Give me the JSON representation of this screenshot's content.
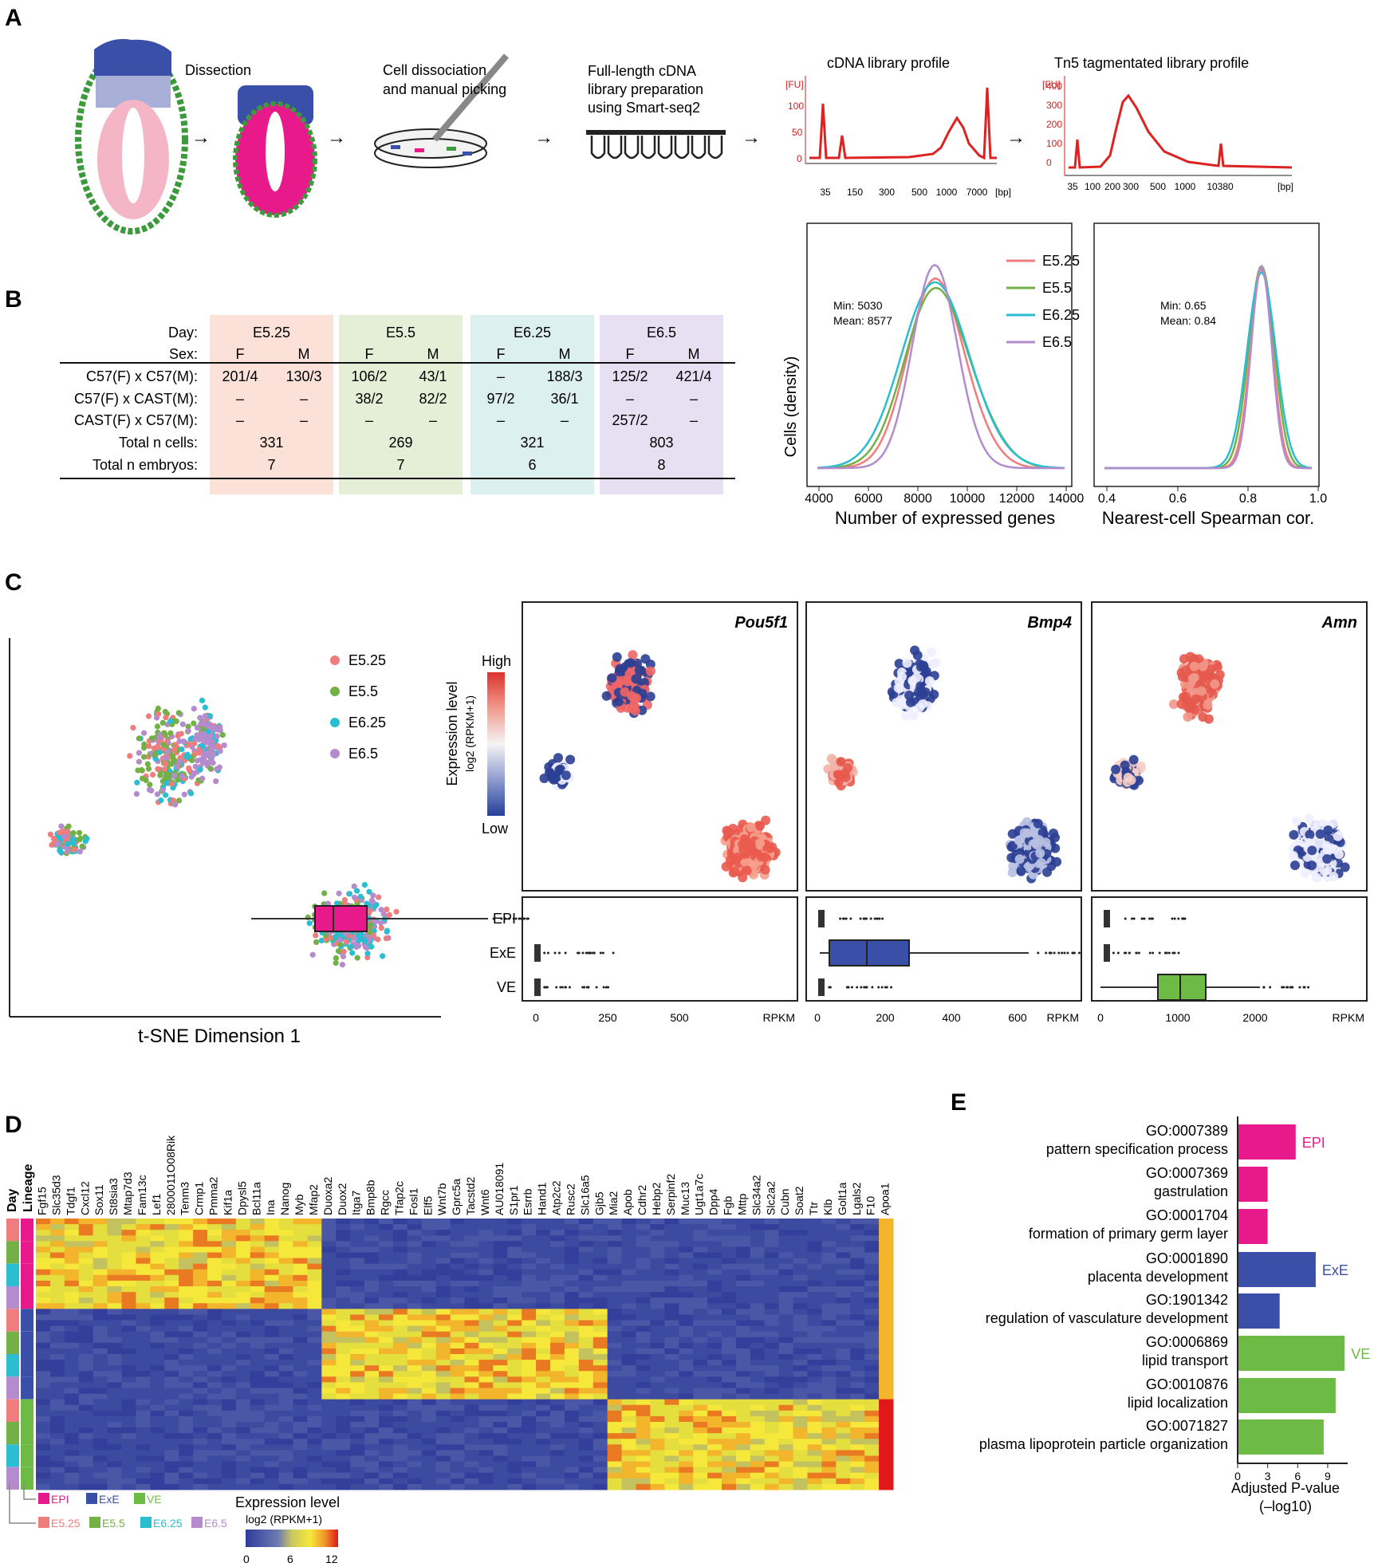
{
  "colors": {
    "e525": "#f07d7d",
    "e55": "#73b045",
    "e625": "#2bbdd0",
    "e65": "#b48ccd",
    "epi": "#e8198b",
    "exe": "#3a4fa8",
    "ve": "#6dbb44",
    "red": "#dd2222"
  },
  "panels": {
    "a": "A",
    "b": "B",
    "c": "C",
    "d": "D",
    "e": "E"
  },
  "panel_a": {
    "dissection": "Dissection",
    "dissociation": [
      "Cell dissociation",
      "and manual picking"
    ],
    "fulllength": [
      "Full-length cDNA",
      "library preparation",
      "using Smart-seq2"
    ],
    "cdna_title": "cDNA library profile",
    "tn5_title": "Tn5 tagmentated library profile",
    "cdna_fu": "[FU]",
    "cdna_yticks": [
      "100",
      "50",
      "0"
    ],
    "cdna_xticks": [
      "35",
      "150",
      "300",
      "500",
      "1000",
      "7000",
      "[bp]"
    ],
    "tn5_fu": "[FU]",
    "tn5_yticks": [
      "400",
      "300",
      "200",
      "100",
      "0"
    ],
    "tn5_xticks": [
      "35",
      "100",
      "200",
      "300",
      "500",
      "1000",
      "10380",
      "[bp]"
    ]
  },
  "panel_b": {
    "row_labels": [
      "Day:",
      "Sex:",
      "C57(F) x C57(M):",
      "C57(F) x CAST(M):",
      "CAST(F) x C57(M):",
      "Total n cells:",
      "Total n embryos:"
    ],
    "groups": [
      {
        "day": "E5.25",
        "sexes": [
          "F",
          "M"
        ],
        "r1": [
          "201/4",
          "130/3"
        ],
        "r2": [
          "–",
          "–"
        ],
        "r3": [
          "–",
          "–"
        ],
        "cells": "331",
        "embryos": "7"
      },
      {
        "day": "E5.5",
        "sexes": [
          "F",
          "M"
        ],
        "r1": [
          "106/2",
          "43/1"
        ],
        "r2": [
          "38/2",
          "82/2"
        ],
        "r3": [
          "–",
          "–"
        ],
        "cells": "269",
        "embryos": "7"
      },
      {
        "day": "E6.25",
        "sexes": [
          "F",
          "M"
        ],
        "r1": [
          "–",
          "188/3"
        ],
        "r2": [
          "97/2",
          "36/1"
        ],
        "r3": [
          "–",
          "–"
        ],
        "cells": "321",
        "embryos": "6"
      },
      {
        "day": "E6.5",
        "sexes": [
          "F",
          "M"
        ],
        "r1": [
          "125/2",
          "421/4"
        ],
        "r2": [
          "–",
          "–"
        ],
        "r3": [
          "257/2",
          "–"
        ],
        "cells": "803",
        "embryos": "8"
      }
    ]
  },
  "density": {
    "ylabel": "Cells (density)",
    "xlabel1": "Number of expressed genes",
    "xlabel2": "Nearest-cell Spearman cor.",
    "stats1": [
      "Min: 5030",
      "Mean: 8577"
    ],
    "stats2": [
      "Min: 0.65",
      "Mean: 0.84"
    ],
    "xticks1": [
      "4000",
      "6000",
      "8000",
      "10000",
      "12000",
      "14000"
    ],
    "xticks2": [
      "0.4",
      "0.6",
      "0.8",
      "1.0"
    ],
    "legend": [
      "E5.25",
      "E5.5",
      "E6.25",
      "E6.5"
    ]
  },
  "panel_c": {
    "tsne_xlabel": "t-SNE Dimension 1",
    "legend": [
      "E5.25",
      "E5.5",
      "E6.25",
      "E6.5"
    ],
    "genes": [
      "Pou5f1",
      "Bmp4",
      "Amn"
    ],
    "expr_label": "Expression level",
    "expr_sub": "log2 (RPKM+1)",
    "high": "High",
    "low": "Low",
    "box_rows": [
      "EPI",
      "ExE",
      "VE"
    ],
    "xticks_1": [
      "0",
      "250",
      "500"
    ],
    "xticks_2": [
      "0",
      "200",
      "400",
      "600"
    ],
    "xticks_3": [
      "0",
      "1000",
      "2000"
    ],
    "rpkm": "RPKM"
  },
  "panel_d": {
    "day_label": "Day",
    "lineage_label": "Lineage",
    "genes": [
      "Fgf15",
      "Slc35d3",
      "Tdgf1",
      "Cxcl12",
      "Sox11",
      "St8sia3",
      "Mtap7d3",
      "Fam13c",
      "Lef1",
      "2800011O08Rik",
      "Tenm3",
      "Crmp1",
      "Pmma2",
      "Kif1a",
      "Dpysl5",
      "Bcl11a",
      "Ina",
      "Nanog",
      "Myb",
      "Mfap2",
      "Duoxa2",
      "Duox2",
      "Itga7",
      "Bmp8b",
      "Rgcc",
      "Tfap2c",
      "Fosl1",
      "Elf5",
      "Wnt7b",
      "Gprc5a",
      "Tacstd2",
      "Wnt6",
      "AU018091",
      "S1pr1",
      "Esrrb",
      "Hand1",
      "Atp2c2",
      "Rusc2",
      "Slc16a5",
      "Gjb5",
      "Mia2",
      "Apob",
      "Cdhr2",
      "Hebp2",
      "Serpinf2",
      "Muc13",
      "Ugt1a7c",
      "Dpp4",
      "Fgb",
      "Mttp",
      "Slc34a2",
      "Slc2a2",
      "Cubn",
      "Soat2",
      "Ttr",
      "Klb",
      "Golt1a",
      "Lgals2",
      "F10",
      "Apoa1"
    ],
    "lineage_legend": [
      "EPI",
      "ExE",
      "VE"
    ],
    "day_legend": [
      "E5.25",
      "E5.5",
      "E6.25",
      "E6.5"
    ],
    "expr_label": "Expression level",
    "expr_sub": "log2 (RPKM+1)",
    "scale": [
      "0",
      "6",
      "12"
    ]
  },
  "chart_data": {
    "type": "bar",
    "title": "E",
    "xlabel": "Adjusted P-value (–log10)",
    "xlabel_lines": [
      "Adjusted P-value",
      "(–log10)"
    ],
    "xticks": [
      "0",
      "3",
      "6",
      "9"
    ],
    "xlim": [
      0,
      11
    ],
    "categories": [
      {
        "id": "GO:0007389",
        "name": "pattern specification process"
      },
      {
        "id": "GO:0007369",
        "name": "gastrulation"
      },
      {
        "id": "GO:0001704",
        "name": "formation of primary germ layer"
      },
      {
        "id": "GO:0001890",
        "name": "placenta development"
      },
      {
        "id": "GO:1901342",
        "name": "regulation of vasculature development"
      },
      {
        "id": "GO:0006869",
        "name": "lipid transport"
      },
      {
        "id": "GO:0010876",
        "name": "lipid localization"
      },
      {
        "id": "GO:0071827",
        "name": "plasma lipoprotein particle organization"
      }
    ],
    "values": [
      5.8,
      3.0,
      3.0,
      7.8,
      4.2,
      10.7,
      9.8,
      8.6
    ],
    "groups": [
      "EPI",
      "EPI",
      "EPI",
      "ExE",
      "ExE",
      "VE",
      "VE",
      "VE"
    ],
    "group_labels": [
      "EPI",
      "ExE",
      "VE"
    ]
  }
}
